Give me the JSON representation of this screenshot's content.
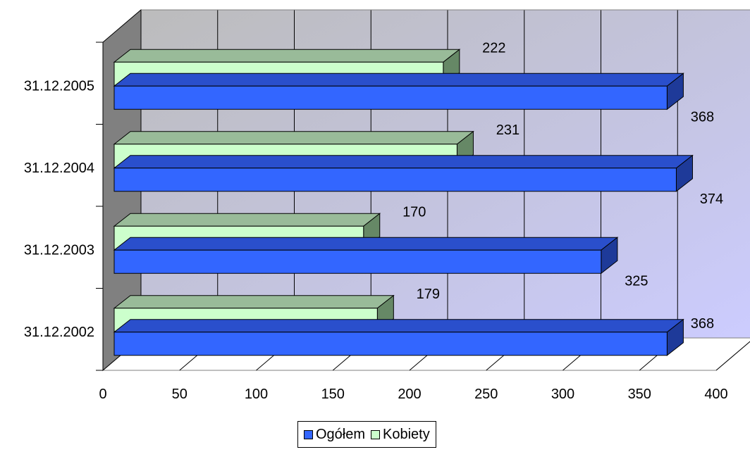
{
  "chart_data": {
    "type": "bar",
    "orientation": "horizontal",
    "style": "3d",
    "categories": [
      "31.12.2002",
      "31.12.2003",
      "31.12.2004",
      "31.12.2005"
    ],
    "series": [
      {
        "name": "Ogółem",
        "values": [
          368,
          325,
          374,
          368
        ],
        "color": "#3366ff"
      },
      {
        "name": "Kobiety",
        "values": [
          179,
          170,
          231,
          222
        ],
        "color": "#ccffcc"
      }
    ],
    "xlim": [
      0,
      400
    ],
    "xticks": [
      "0",
      "50",
      "100",
      "150",
      "200",
      "250",
      "300",
      "350",
      "400"
    ],
    "grid": true,
    "legend_position": "bottom",
    "colors": {
      "wall": "#c0c0c0",
      "floor_side": "#808080",
      "grid": "#000000"
    }
  }
}
